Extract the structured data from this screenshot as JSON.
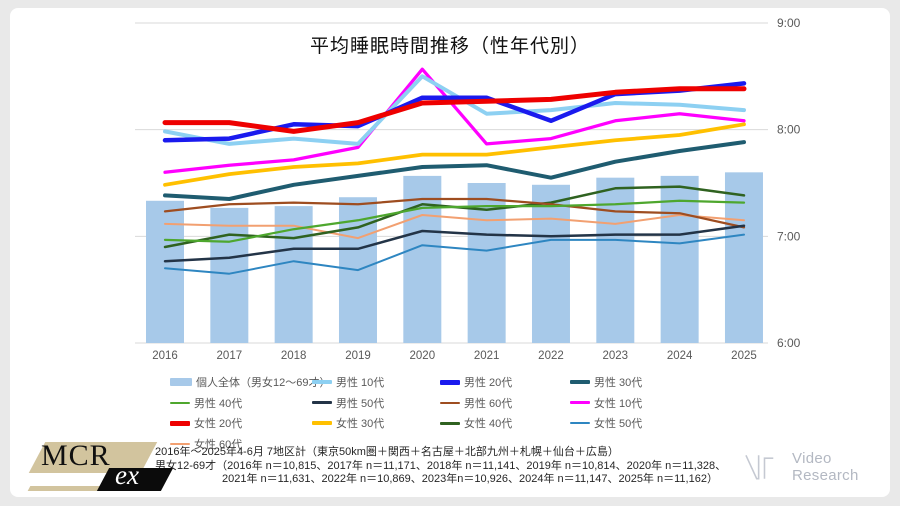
{
  "title": "平均睡眠時間推移（性年代別）",
  "chart_data": {
    "type": "bar+line combo",
    "categories": [
      "2016",
      "2017",
      "2018",
      "2019",
      "2020",
      "2021",
      "2022",
      "2023",
      "2024",
      "2025"
    ],
    "y_ticks": [
      "9:00",
      "8:00",
      "7:00",
      "6:00"
    ],
    "y_range": [
      "6:00",
      "9:00"
    ],
    "grid": "horizontal",
    "legend_position": "bottom",
    "bar_series": {
      "name": "個人全体（男女12～69才）",
      "color": "#a7c9e9",
      "values": [
        "7:20",
        "7:16",
        "7:17",
        "7:22",
        "7:34",
        "7:30",
        "7:29",
        "7:33",
        "7:34",
        "7:36"
      ]
    },
    "series": [
      {
        "name": "男性 10代",
        "color": "#8dd0f2",
        "weight": 4,
        "values": [
          "7:59",
          "7:52",
          "7:55",
          "7:52",
          "8:30",
          "8:09",
          "8:11",
          "8:15",
          "8:14",
          "8:11"
        ]
      },
      {
        "name": "男性 20代",
        "color": "#1a1aee",
        "weight": 4.5,
        "values": [
          "7:54",
          "7:55",
          "8:03",
          "8:02",
          "8:18",
          "8:18",
          "8:05",
          "8:20",
          "8:22",
          "8:26"
        ]
      },
      {
        "name": "男性 30代",
        "color": "#1f5c70",
        "weight": 4,
        "values": [
          "7:23",
          "7:21",
          "7:29",
          "7:34",
          "7:39",
          "7:40",
          "7:33",
          "7:42",
          "7:48",
          "7:53"
        ]
      },
      {
        "name": "男性 40代",
        "color": "#4ea72e",
        "weight": 2.25,
        "values": [
          "6:58",
          "6:57",
          "7:04",
          "7:09",
          "7:16",
          "7:17",
          "7:17",
          "7:18",
          "7:20",
          "7:19"
        ]
      },
      {
        "name": "男性 50代",
        "color": "#233447",
        "weight": 2.5,
        "values": [
          "6:46",
          "6:48",
          "6:53",
          "6:53",
          "7:03",
          "7:01",
          "7:00",
          "7:01",
          "7:01",
          "7:06"
        ]
      },
      {
        "name": "男性 60代",
        "color": "#9e4d20",
        "weight": 2.25,
        "values": [
          "7:14",
          "7:18",
          "7:19",
          "7:18",
          "7:21",
          "7:21",
          "7:18",
          "7:14",
          "7:13",
          "7:05"
        ]
      },
      {
        "name": "女性 10代",
        "color": "#ff00ff",
        "weight": 3.25,
        "values": [
          "7:36",
          "7:40",
          "7:43",
          "7:50",
          "8:34",
          "7:52",
          "7:55",
          "8:05",
          "8:09",
          "8:05"
        ]
      },
      {
        "name": "女性 20代",
        "color": "#ee0000",
        "weight": 5,
        "values": [
          "8:04",
          "8:04",
          "7:59",
          "8:04",
          "8:15",
          "8:16",
          "8:17",
          "8:21",
          "8:23",
          "8:23"
        ]
      },
      {
        "name": "女性 30代",
        "color": "#ffc000",
        "weight": 3.75,
        "values": [
          "7:29",
          "7:35",
          "7:39",
          "7:41",
          "7:46",
          "7:46",
          "7:50",
          "7:54",
          "7:57",
          "8:03"
        ]
      },
      {
        "name": "女性 40代",
        "color": "#2f6220",
        "weight": 2.5,
        "values": [
          "6:54",
          "7:01",
          "6:59",
          "7:05",
          "7:18",
          "7:15",
          "7:19",
          "7:27",
          "7:28",
          "7:23"
        ]
      },
      {
        "name": "女性 50代",
        "color": "#2e86c1",
        "weight": 2,
        "values": [
          "6:42",
          "6:39",
          "6:46",
          "6:41",
          "6:55",
          "6:52",
          "6:58",
          "6:58",
          "6:56",
          "7:01"
        ]
      },
      {
        "name": "女性 60代",
        "color": "#f2a071",
        "weight": 2,
        "values": [
          "7:07",
          "7:06",
          "7:06",
          "6:59",
          "7:12",
          "7:09",
          "7:10",
          "7:07",
          "7:12",
          "7:09"
        ]
      }
    ],
    "axis_color": "#595959",
    "gridline_color": "#d9d9d9"
  },
  "footer": {
    "line1": "2016年～2025年4-6月  7地区計（東京50km圏＋関西＋名古屋＋北部九州＋札幌＋仙台＋広島）",
    "line2": "男女12-69才（2016年 n＝10,815、2017年 n＝11,171、2018年 n＝11,141、2019年  n＝10,814、2020年  n＝11,328、",
    "line3": "2021年 n＝11,631、2022年  n＝10,869、2023年n＝10,926、2024年 n＝11,147、2025年 n＝11,162）"
  },
  "logos": {
    "mcr_text": "MCR",
    "ex_text": "ex",
    "vr_text": "Video Research"
  }
}
